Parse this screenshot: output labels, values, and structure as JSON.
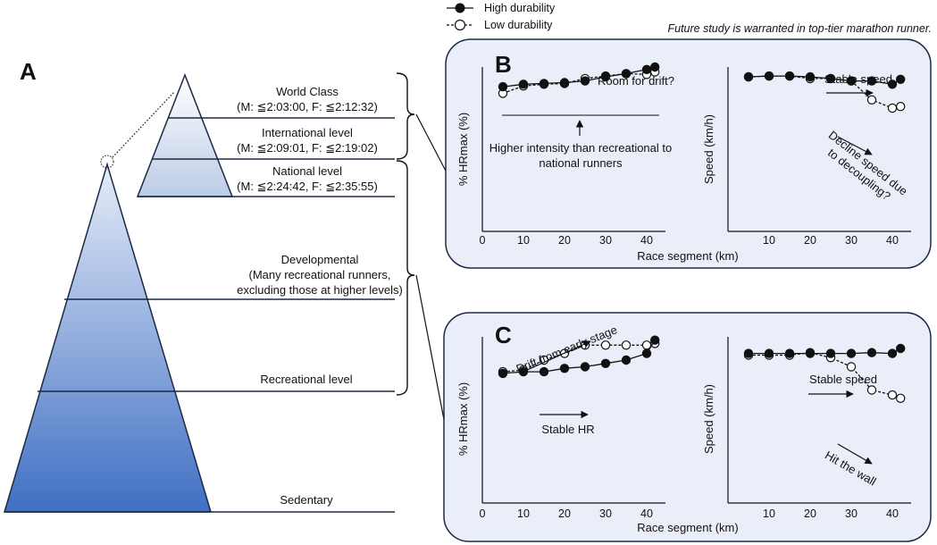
{
  "note": "Future study is warranted in top-tier marathon runner.",
  "legend": {
    "high": "High durability",
    "low": "Low durability"
  },
  "panel_a": {
    "letter": "A",
    "levels": {
      "world_title": "World Class",
      "world_detail": "(M: ≦2:03:00, F: ≦2:12:32)",
      "international_title": "International level",
      "international_detail": "(M: ≦2:09:01, F: ≦2:19:02)",
      "national_title": "National level",
      "national_detail": "(M: ≦2:24:42, F: ≦2:35:55)",
      "developmental_title": "Developmental",
      "developmental_line1": "(Many recreational runners,",
      "developmental_line2": "excluding those at higher levels)",
      "recreational": "Recreational level",
      "sedentary": "Sedentary"
    },
    "colors": {
      "pyramid_top": "#dce6f4",
      "pyramid_bottom": "#3f6fc4",
      "panel_bg": "#eaeef9"
    }
  },
  "panel_b": {
    "letter": "B",
    "xlabel": "Race segment (km)",
    "hr_ylabel": "% HRmax (%)",
    "speed_ylabel": "Speed (km/h)",
    "ann_room": "Room for drift?",
    "ann_higher_1": "Higher intensity than recreational to",
    "ann_higher_2": "national runners",
    "ann_stable_speed": "Stable speed",
    "ann_decline_1": "Decline speed due",
    "ann_decline_2": "to decoupling?"
  },
  "panel_c": {
    "letter": "C",
    "xlabel": "Race segment (km)",
    "hr_ylabel": "% HRmax (%)",
    "speed_ylabel": "Speed (km/h)",
    "ann_drift": "Drift from early stage",
    "ann_stable_hr": "Stable HR",
    "ann_stable_speed": "Stable speed",
    "ann_wall": "Hit the wall"
  },
  "chart_data": [
    {
      "id": "B-hr",
      "type": "line",
      "xlabel": "Race segment (km)",
      "ylabel": "% HRmax (%)",
      "xlim": [
        0,
        45
      ],
      "ylim": [
        0,
        100
      ],
      "x_ticks": [
        "0",
        "10",
        "20",
        "30",
        "40"
      ],
      "x": [
        5,
        10,
        15,
        20,
        25,
        30,
        35,
        40,
        42
      ],
      "series": [
        {
          "name": "High durability",
          "values": [
            88,
            89.5,
            90,
            90.5,
            91.5,
            94,
            96,
            98.5,
            100
          ]
        },
        {
          "name": "Low durability",
          "values": [
            84,
            88.5,
            89.5,
            90,
            93,
            94.5,
            96,
            95.5,
            97
          ]
        }
      ]
    },
    {
      "id": "B-speed",
      "type": "line",
      "xlabel": "Race segment (km)",
      "ylabel": "Speed (km/h)",
      "xlim": [
        0,
        45
      ],
      "ylim": [
        0,
        100
      ],
      "x_ticks": [
        "10",
        "20",
        "30",
        "40"
      ],
      "x": [
        5,
        10,
        15,
        20,
        25,
        30,
        35,
        40,
        42
      ],
      "series": [
        {
          "name": "High durability",
          "values": [
            94,
            94.5,
            94.5,
            94,
            93,
            91.5,
            91.5,
            89.5,
            92.5
          ]
        },
        {
          "name": "Low durability",
          "values": [
            94,
            94.5,
            94.5,
            93,
            93,
            91.5,
            80,
            75,
            76
          ]
        }
      ]
    },
    {
      "id": "C-hr",
      "type": "line",
      "xlabel": "Race segment (km)",
      "ylabel": "% HRmax (%)",
      "xlim": [
        0,
        45
      ],
      "ylim": [
        0,
        100
      ],
      "x_ticks": [
        "0",
        "10",
        "20",
        "30",
        "40"
      ],
      "x": [
        5,
        10,
        15,
        20,
        25,
        30,
        35,
        40,
        42
      ],
      "series": [
        {
          "name": "High durability",
          "values": [
            78,
            79,
            79,
            81,
            82,
            84,
            86,
            90,
            98
          ]
        },
        {
          "name": "Low durability",
          "values": [
            79,
            80,
            86,
            90,
            95,
            95,
            95,
            95,
            96
          ]
        }
      ]
    },
    {
      "id": "C-speed",
      "type": "line",
      "xlabel": "Race segment (km)",
      "ylabel": "Speed (km/h)",
      "xlim": [
        0,
        45
      ],
      "ylim": [
        0,
        100
      ],
      "x_ticks": [
        "10",
        "20",
        "30",
        "40"
      ],
      "x": [
        5,
        10,
        15,
        20,
        25,
        30,
        35,
        40,
        42
      ],
      "series": [
        {
          "name": "High durability",
          "values": [
            90,
            90,
            90,
            90,
            90,
            90,
            90.5,
            90,
            93
          ]
        },
        {
          "name": "Low durability",
          "values": [
            89,
            89,
            89,
            90.5,
            87.5,
            82,
            68,
            65,
            63
          ]
        }
      ]
    }
  ]
}
